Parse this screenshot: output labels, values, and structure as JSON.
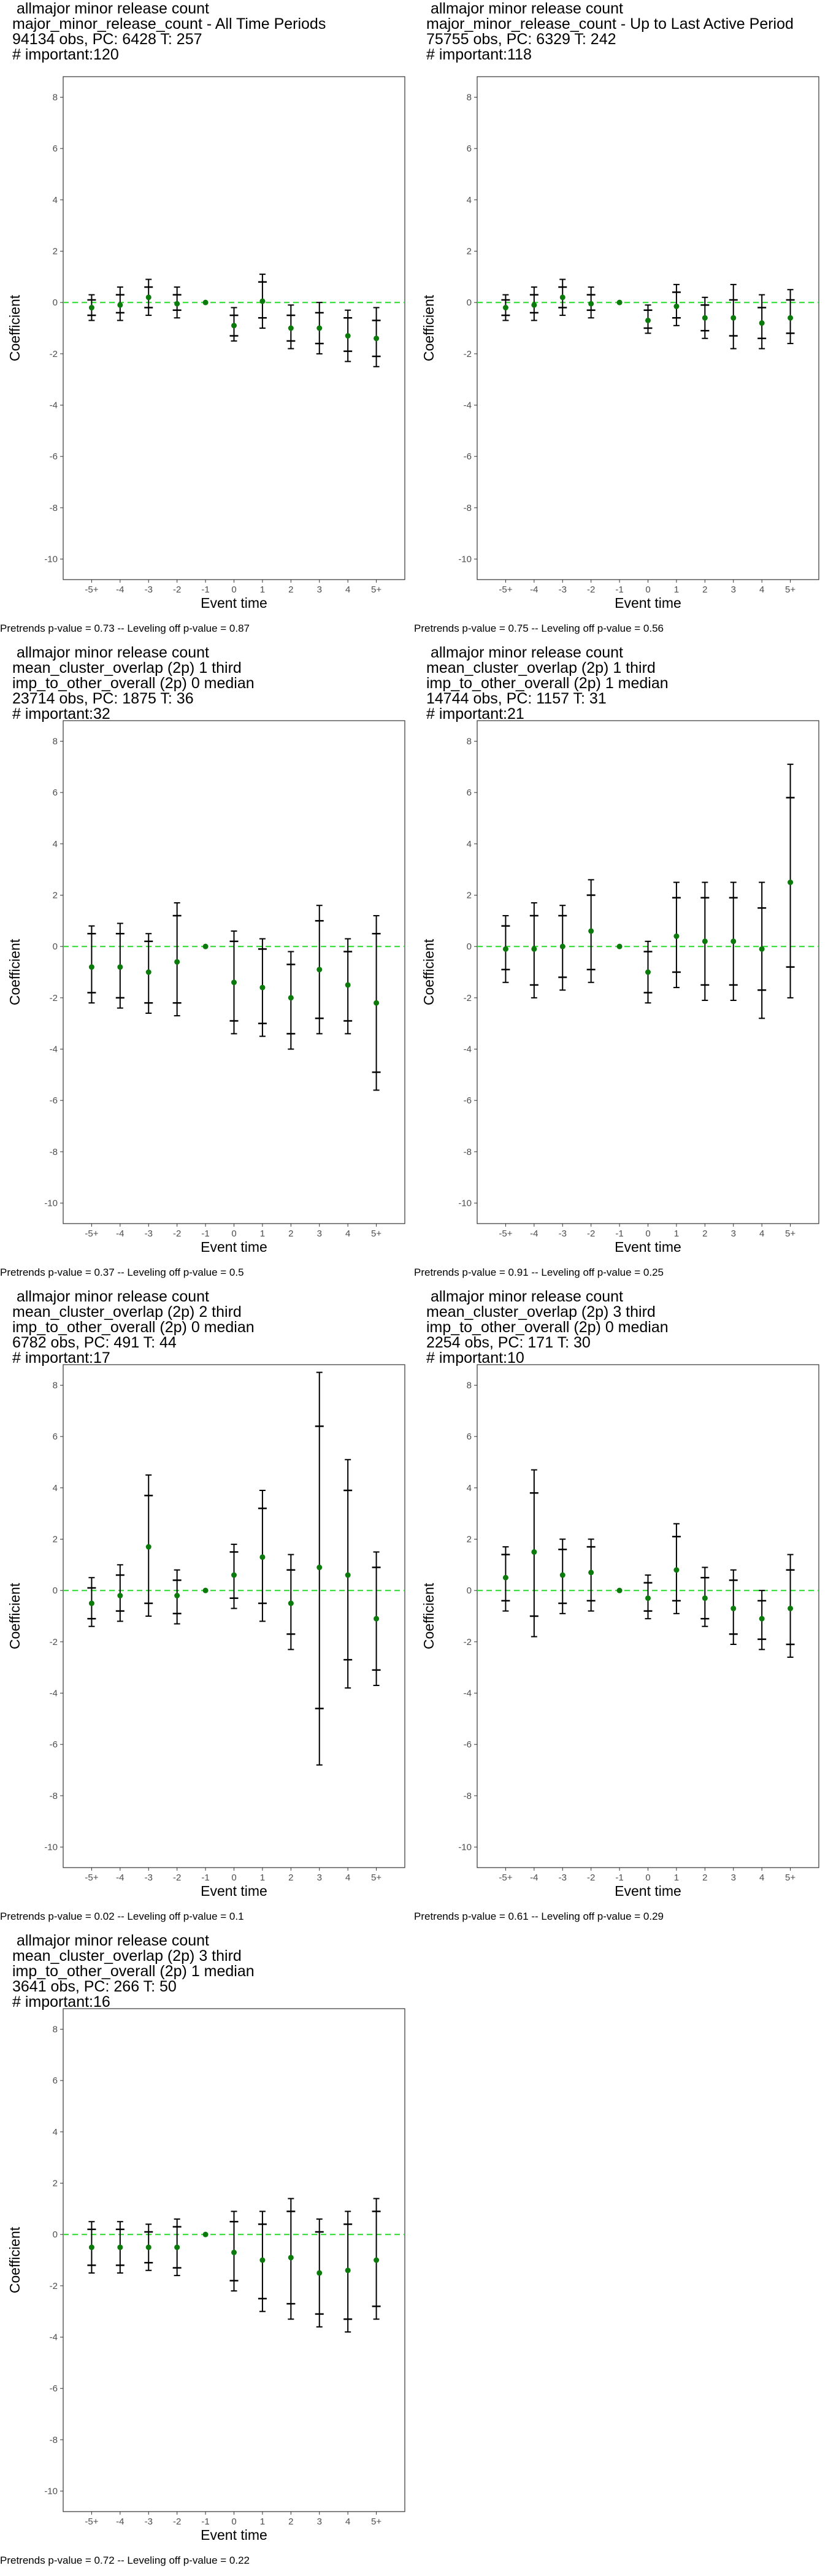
{
  "chart_data": [
    {
      "type": "errorbar",
      "title_lines": [
        " allmajor minor release count",
        "major_minor_release_count - All Time Periods",
        "94134 obs, PC: 6428 T: 257",
        "# important:120"
      ],
      "xlabel": "Event time",
      "ylabel": "Coefficient",
      "categories": [
        "-5+",
        "-4",
        "-3",
        "-2",
        "-1",
        "0",
        "1",
        "2",
        "3",
        "4",
        "5+"
      ],
      "ylim": [
        -10.8,
        8.8
      ],
      "yticks": [
        -10,
        -8,
        -6,
        -4,
        -2,
        0,
        2,
        4,
        6,
        8
      ],
      "points": [
        {
          "y": -0.2,
          "ci_inner": [
            -0.5,
            0.1
          ],
          "ci_outer": [
            -0.7,
            0.3
          ]
        },
        {
          "y": -0.1,
          "ci_inner": [
            -0.4,
            0.3
          ],
          "ci_outer": [
            -0.7,
            0.6
          ]
        },
        {
          "y": 0.2,
          "ci_inner": [
            -0.2,
            0.6
          ],
          "ci_outer": [
            -0.5,
            0.9
          ]
        },
        {
          "y": -0.05,
          "ci_inner": [
            -0.3,
            0.3
          ],
          "ci_outer": [
            -0.6,
            0.6
          ]
        },
        {
          "y": 0,
          "ci_inner": null,
          "ci_outer": null
        },
        {
          "y": -0.9,
          "ci_inner": [
            -1.3,
            -0.5
          ],
          "ci_outer": [
            -1.5,
            -0.2
          ]
        },
        {
          "y": 0.05,
          "ci_inner": [
            -0.6,
            0.8
          ],
          "ci_outer": [
            -1.0,
            1.1
          ]
        },
        {
          "y": -1.0,
          "ci_inner": [
            -1.5,
            -0.5
          ],
          "ci_outer": [
            -1.8,
            -0.1
          ]
        },
        {
          "y": -1.0,
          "ci_inner": [
            -1.6,
            -0.4
          ],
          "ci_outer": [
            -2.0,
            0.0
          ]
        },
        {
          "y": -1.3,
          "ci_inner": [
            -1.9,
            -0.6
          ],
          "ci_outer": [
            -2.3,
            -0.3
          ]
        },
        {
          "y": -1.4,
          "ci_inner": [
            -2.1,
            -0.7
          ],
          "ci_outer": [
            -2.5,
            -0.2
          ]
        }
      ],
      "note": "Pretrends p-value = 0.73 -- Leveling off p-value = 0.87"
    },
    {
      "type": "errorbar",
      "title_lines": [
        " allmajor minor release count",
        "major_minor_release_count - Up to Last Active Period",
        "75755 obs, PC: 6329 T: 242",
        "# important:118"
      ],
      "xlabel": "Event time",
      "ylabel": "Coefficient",
      "categories": [
        "-5+",
        "-4",
        "-3",
        "-2",
        "-1",
        "0",
        "1",
        "2",
        "3",
        "4",
        "5+"
      ],
      "ylim": [
        -10.8,
        8.8
      ],
      "yticks": [
        -10,
        -8,
        -6,
        -4,
        -2,
        0,
        2,
        4,
        6,
        8
      ],
      "points": [
        {
          "y": -0.2,
          "ci_inner": [
            -0.5,
            0.1
          ],
          "ci_outer": [
            -0.7,
            0.3
          ]
        },
        {
          "y": -0.1,
          "ci_inner": [
            -0.4,
            0.3
          ],
          "ci_outer": [
            -0.7,
            0.6
          ]
        },
        {
          "y": 0.2,
          "ci_inner": [
            -0.2,
            0.6
          ],
          "ci_outer": [
            -0.5,
            0.9
          ]
        },
        {
          "y": -0.05,
          "ci_inner": [
            -0.3,
            0.3
          ],
          "ci_outer": [
            -0.6,
            0.6
          ]
        },
        {
          "y": 0,
          "ci_inner": null,
          "ci_outer": null
        },
        {
          "y": -0.7,
          "ci_inner": [
            -1.0,
            -0.3
          ],
          "ci_outer": [
            -1.2,
            -0.1
          ]
        },
        {
          "y": -0.15,
          "ci_inner": [
            -0.6,
            0.4
          ],
          "ci_outer": [
            -0.9,
            0.7
          ]
        },
        {
          "y": -0.6,
          "ci_inner": [
            -1.1,
            -0.1
          ],
          "ci_outer": [
            -1.4,
            0.2
          ]
        },
        {
          "y": -0.6,
          "ci_inner": [
            -1.3,
            0.1
          ],
          "ci_outer": [
            -1.8,
            0.7
          ]
        },
        {
          "y": -0.8,
          "ci_inner": [
            -1.4,
            -0.2
          ],
          "ci_outer": [
            -1.8,
            0.3
          ]
        },
        {
          "y": -0.6,
          "ci_inner": [
            -1.2,
            0.1
          ],
          "ci_outer": [
            -1.6,
            0.5
          ]
        }
      ],
      "note": "Pretrends p-value = 0.75 -- Leveling off p-value = 0.56"
    },
    {
      "type": "errorbar",
      "title_lines": [
        " allmajor minor release count",
        "mean_cluster_overlap (2p) 1 third",
        "imp_to_other_overall (2p) 0 median",
        "23714 obs, PC: 1875 T: 36",
        "# important:32"
      ],
      "xlabel": "Event time",
      "ylabel": "Coefficient",
      "categories": [
        "-5+",
        "-4",
        "-3",
        "-2",
        "-1",
        "0",
        "1",
        "2",
        "3",
        "4",
        "5+"
      ],
      "ylim": [
        -10.8,
        8.8
      ],
      "yticks": [
        -10,
        -8,
        -6,
        -4,
        -2,
        0,
        2,
        4,
        6,
        8
      ],
      "points": [
        {
          "y": -0.8,
          "ci_inner": [
            -1.8,
            0.5
          ],
          "ci_outer": [
            -2.2,
            0.8
          ]
        },
        {
          "y": -0.8,
          "ci_inner": [
            -2.0,
            0.5
          ],
          "ci_outer": [
            -2.4,
            0.9
          ]
        },
        {
          "y": -1.0,
          "ci_inner": [
            -2.2,
            0.2
          ],
          "ci_outer": [
            -2.6,
            0.5
          ]
        },
        {
          "y": -0.6,
          "ci_inner": [
            -2.2,
            1.2
          ],
          "ci_outer": [
            -2.7,
            1.7
          ]
        },
        {
          "y": 0,
          "ci_inner": null,
          "ci_outer": null
        },
        {
          "y": -1.4,
          "ci_inner": [
            -2.9,
            0.2
          ],
          "ci_outer": [
            -3.4,
            0.6
          ]
        },
        {
          "y": -1.6,
          "ci_inner": [
            -3.0,
            -0.1
          ],
          "ci_outer": [
            -3.5,
            0.3
          ]
        },
        {
          "y": -2.0,
          "ci_inner": [
            -3.4,
            -0.7
          ],
          "ci_outer": [
            -4.0,
            -0.2
          ]
        },
        {
          "y": -0.9,
          "ci_inner": [
            -2.8,
            1.0
          ],
          "ci_outer": [
            -3.4,
            1.6
          ]
        },
        {
          "y": -1.5,
          "ci_inner": [
            -2.9,
            -0.2
          ],
          "ci_outer": [
            -3.4,
            0.3
          ]
        },
        {
          "y": -2.2,
          "ci_inner": [
            -4.9,
            0.5
          ],
          "ci_outer": [
            -5.6,
            1.2
          ]
        }
      ],
      "note": "Pretrends p-value = 0.37 -- Leveling off p-value = 0.5"
    },
    {
      "type": "errorbar",
      "title_lines": [
        " allmajor minor release count",
        "mean_cluster_overlap (2p) 1 third",
        "imp_to_other_overall (2p) 1 median",
        "14744 obs, PC: 1157 T: 31",
        "# important:21"
      ],
      "xlabel": "Event time",
      "ylabel": "Coefficient",
      "categories": [
        "-5+",
        "-4",
        "-3",
        "-2",
        "-1",
        "0",
        "1",
        "2",
        "3",
        "4",
        "5+"
      ],
      "ylim": [
        -10.8,
        8.8
      ],
      "yticks": [
        -10,
        -8,
        -6,
        -4,
        -2,
        0,
        2,
        4,
        6,
        8
      ],
      "points": [
        {
          "y": -0.1,
          "ci_inner": [
            -0.9,
            0.8
          ],
          "ci_outer": [
            -1.4,
            1.2
          ]
        },
        {
          "y": -0.1,
          "ci_inner": [
            -1.5,
            1.2
          ],
          "ci_outer": [
            -2.0,
            1.7
          ]
        },
        {
          "y": 0.0,
          "ci_inner": [
            -1.2,
            1.2
          ],
          "ci_outer": [
            -1.7,
            1.6
          ]
        },
        {
          "y": 0.6,
          "ci_inner": [
            -0.9,
            2.0
          ],
          "ci_outer": [
            -1.4,
            2.6
          ]
        },
        {
          "y": 0,
          "ci_inner": null,
          "ci_outer": null
        },
        {
          "y": -1.0,
          "ci_inner": [
            -1.8,
            -0.2
          ],
          "ci_outer": [
            -2.2,
            0.2
          ]
        },
        {
          "y": 0.4,
          "ci_inner": [
            -1.0,
            1.9
          ],
          "ci_outer": [
            -1.6,
            2.5
          ]
        },
        {
          "y": 0.2,
          "ci_inner": [
            -1.5,
            1.9
          ],
          "ci_outer": [
            -2.1,
            2.5
          ]
        },
        {
          "y": 0.2,
          "ci_inner": [
            -1.5,
            1.9
          ],
          "ci_outer": [
            -2.1,
            2.5
          ]
        },
        {
          "y": -0.1,
          "ci_inner": [
            -1.7,
            1.5
          ],
          "ci_outer": [
            -2.8,
            2.5
          ]
        },
        {
          "y": 2.5,
          "ci_inner": [
            -0.8,
            5.8
          ],
          "ci_outer": [
            -2.0,
            7.1
          ]
        }
      ],
      "note": "Pretrends p-value = 0.91 -- Leveling off p-value = 0.25"
    },
    {
      "type": "errorbar",
      "title_lines": [
        " allmajor minor release count",
        "mean_cluster_overlap (2p) 2 third",
        "imp_to_other_overall (2p) 0 median",
        "6782 obs, PC: 491 T: 44",
        "# important:17"
      ],
      "xlabel": "Event time",
      "ylabel": "Coefficient",
      "categories": [
        "-5+",
        "-4",
        "-3",
        "-2",
        "-1",
        "0",
        "1",
        "2",
        "3",
        "4",
        "5+"
      ],
      "ylim": [
        -10.8,
        8.8
      ],
      "yticks": [
        -10,
        -8,
        -6,
        -4,
        -2,
        0,
        2,
        4,
        6,
        8
      ],
      "points": [
        {
          "y": -0.5,
          "ci_inner": [
            -1.1,
            0.1
          ],
          "ci_outer": [
            -1.4,
            0.5
          ]
        },
        {
          "y": -0.2,
          "ci_inner": [
            -0.8,
            0.6
          ],
          "ci_outer": [
            -1.2,
            1.0
          ]
        },
        {
          "y": 1.7,
          "ci_inner": [
            -0.5,
            3.7
          ],
          "ci_outer": [
            -1.0,
            4.5
          ]
        },
        {
          "y": -0.2,
          "ci_inner": [
            -0.9,
            0.4
          ],
          "ci_outer": [
            -1.3,
            0.8
          ]
        },
        {
          "y": 0,
          "ci_inner": null,
          "ci_outer": null
        },
        {
          "y": 0.6,
          "ci_inner": [
            -0.3,
            1.5
          ],
          "ci_outer": [
            -0.7,
            1.8
          ]
        },
        {
          "y": 1.3,
          "ci_inner": [
            -0.5,
            3.2
          ],
          "ci_outer": [
            -1.2,
            3.9
          ]
        },
        {
          "y": -0.5,
          "ci_inner": [
            -1.7,
            0.8
          ],
          "ci_outer": [
            -2.3,
            1.4
          ]
        },
        {
          "y": 0.9,
          "ci_inner": [
            -4.6,
            6.4
          ],
          "ci_outer": [
            -6.8,
            8.5
          ]
        },
        {
          "y": 0.6,
          "ci_inner": [
            -2.7,
            3.9
          ],
          "ci_outer": [
            -3.8,
            5.1
          ]
        },
        {
          "y": -1.1,
          "ci_inner": [
            -3.1,
            0.9
          ],
          "ci_outer": [
            -3.7,
            1.5
          ]
        }
      ],
      "note": "Pretrends p-value = 0.02 -- Leveling off p-value = 0.1"
    },
    {
      "type": "errorbar",
      "title_lines": [
        " allmajor minor release count",
        "mean_cluster_overlap (2p) 3 third",
        "imp_to_other_overall (2p) 0 median",
        "2254 obs, PC: 171 T: 30",
        "# important:10"
      ],
      "xlabel": "Event time",
      "ylabel": "Coefficient",
      "categories": [
        "-5+",
        "-4",
        "-3",
        "-2",
        "-1",
        "0",
        "1",
        "2",
        "3",
        "4",
        "5+"
      ],
      "ylim": [
        -10.8,
        8.8
      ],
      "yticks": [
        -10,
        -8,
        -6,
        -4,
        -2,
        0,
        2,
        4,
        6,
        8
      ],
      "points": [
        {
          "y": 0.5,
          "ci_inner": [
            -0.4,
            1.4
          ],
          "ci_outer": [
            -0.8,
            1.7
          ]
        },
        {
          "y": 1.5,
          "ci_inner": [
            -1.0,
            3.8
          ],
          "ci_outer": [
            -1.8,
            4.7
          ]
        },
        {
          "y": 0.6,
          "ci_inner": [
            -0.5,
            1.6
          ],
          "ci_outer": [
            -0.9,
            2.0
          ]
        },
        {
          "y": 0.7,
          "ci_inner": [
            -0.4,
            1.7
          ],
          "ci_outer": [
            -0.8,
            2.0
          ]
        },
        {
          "y": 0,
          "ci_inner": null,
          "ci_outer": null
        },
        {
          "y": -0.3,
          "ci_inner": [
            -0.8,
            0.3
          ],
          "ci_outer": [
            -1.1,
            0.6
          ]
        },
        {
          "y": 0.8,
          "ci_inner": [
            -0.4,
            2.1
          ],
          "ci_outer": [
            -0.9,
            2.6
          ]
        },
        {
          "y": -0.3,
          "ci_inner": [
            -1.1,
            0.5
          ],
          "ci_outer": [
            -1.4,
            0.9
          ]
        },
        {
          "y": -0.7,
          "ci_inner": [
            -1.7,
            0.4
          ],
          "ci_outer": [
            -2.1,
            0.8
          ]
        },
        {
          "y": -1.1,
          "ci_inner": [
            -1.9,
            -0.4
          ],
          "ci_outer": [
            -2.3,
            0.0
          ]
        },
        {
          "y": -0.7,
          "ci_inner": [
            -2.1,
            0.8
          ],
          "ci_outer": [
            -2.6,
            1.4
          ]
        }
      ],
      "note": "Pretrends p-value = 0.61 -- Leveling off p-value = 0.29"
    },
    {
      "type": "errorbar",
      "title_lines": [
        " allmajor minor release count",
        "mean_cluster_overlap (2p) 3 third",
        "imp_to_other_overall (2p) 1 median",
        "3641 obs, PC: 266 T: 50",
        "# important:16"
      ],
      "xlabel": "Event time",
      "ylabel": "Coefficient",
      "categories": [
        "-5+",
        "-4",
        "-3",
        "-2",
        "-1",
        "0",
        "1",
        "2",
        "3",
        "4",
        "5+"
      ],
      "ylim": [
        -10.8,
        8.8
      ],
      "yticks": [
        -10,
        -8,
        -6,
        -4,
        -2,
        0,
        2,
        4,
        6,
        8
      ],
      "points": [
        {
          "y": -0.5,
          "ci_inner": [
            -1.2,
            0.2
          ],
          "ci_outer": [
            -1.5,
            0.5
          ]
        },
        {
          "y": -0.5,
          "ci_inner": [
            -1.2,
            0.2
          ],
          "ci_outer": [
            -1.5,
            0.5
          ]
        },
        {
          "y": -0.5,
          "ci_inner": [
            -1.1,
            0.1
          ],
          "ci_outer": [
            -1.4,
            0.4
          ]
        },
        {
          "y": -0.5,
          "ci_inner": [
            -1.3,
            0.3
          ],
          "ci_outer": [
            -1.6,
            0.6
          ]
        },
        {
          "y": 0,
          "ci_inner": null,
          "ci_outer": null
        },
        {
          "y": -0.7,
          "ci_inner": [
            -1.8,
            0.5
          ],
          "ci_outer": [
            -2.2,
            0.9
          ]
        },
        {
          "y": -1.0,
          "ci_inner": [
            -2.5,
            0.4
          ],
          "ci_outer": [
            -3.0,
            0.9
          ]
        },
        {
          "y": -0.9,
          "ci_inner": [
            -2.7,
            0.9
          ],
          "ci_outer": [
            -3.3,
            1.4
          ]
        },
        {
          "y": -1.5,
          "ci_inner": [
            -3.1,
            0.1
          ],
          "ci_outer": [
            -3.6,
            0.6
          ]
        },
        {
          "y": -1.4,
          "ci_inner": [
            -3.3,
            0.4
          ],
          "ci_outer": [
            -3.8,
            0.9
          ]
        },
        {
          "y": -1.0,
          "ci_inner": [
            -2.8,
            0.9
          ],
          "ci_outer": [
            -3.3,
            1.4
          ]
        }
      ],
      "note": "Pretrends p-value = 0.72 -- Leveling off p-value = 0.22"
    }
  ],
  "colors": {
    "point": "#0a7a0a",
    "reference_line": "#33dd33",
    "error_bar": "#000000",
    "grid": "none"
  }
}
